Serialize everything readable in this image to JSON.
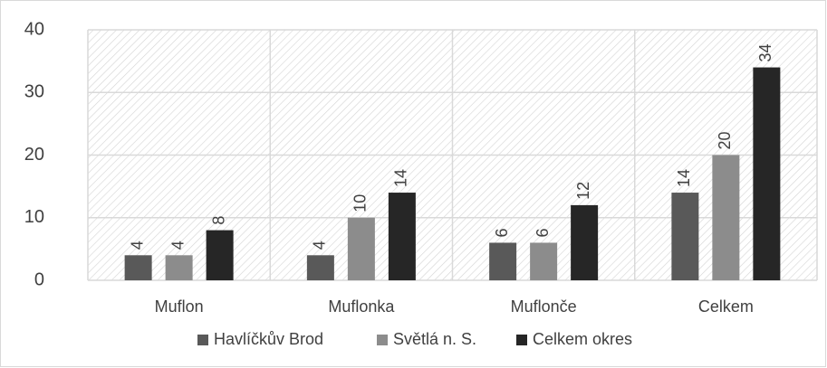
{
  "chart_data": {
    "type": "bar",
    "categories": [
      "Muflon",
      "Muflonka",
      "Muflonče",
      "Celkem"
    ],
    "series": [
      {
        "name": "Havlíčkův Brod",
        "color": "#595959",
        "values": [
          4,
          4,
          6,
          14
        ]
      },
      {
        "name": "Světlá n. S.",
        "color": "#8c8c8c",
        "values": [
          4,
          10,
          6,
          20
        ]
      },
      {
        "name": "Celkem okres",
        "color": "#262626",
        "values": [
          8,
          14,
          12,
          34
        ]
      }
    ],
    "ylim": [
      0,
      40
    ],
    "yticks": [
      0,
      10,
      20,
      30,
      40
    ],
    "grid": true,
    "legend": "bottom"
  }
}
